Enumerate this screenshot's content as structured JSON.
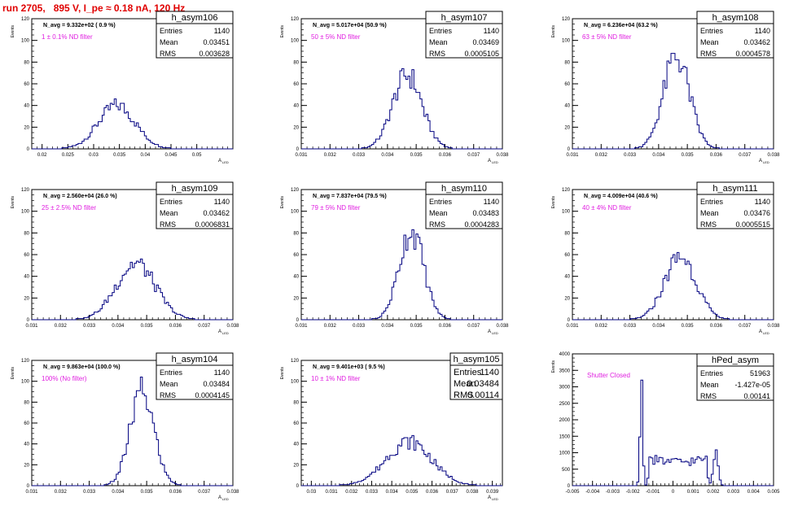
{
  "canvas_title": "run 2705,   895 V, I_pe ≈ 0.18 nA, 120 Hz",
  "colors": {
    "title": "#e00000",
    "annotation": "#e020e0",
    "hist_line": "#000080",
    "axis": "#000000",
    "frame": "#000000"
  },
  "stat_labels": {
    "entries": "Entries",
    "mean": "Mean",
    "rms": "RMS"
  },
  "y_axis_label": "Events",
  "chart_data": [
    {
      "type": "histogram",
      "name": "h_asym106",
      "navg": "N_avg = 9.332e+02 ( 0.9 %)",
      "annotation": "1 ± 0.1% ND filter",
      "stats": {
        "entries": "1140",
        "mean": "0.03451",
        "rms": "0.003628"
      },
      "x_range": [
        0.018,
        0.057
      ],
      "ylim": [
        0,
        120
      ],
      "x_ticks": [
        "0.02",
        "0.025",
        "0.03",
        "0.035",
        "0.04",
        "0.045",
        "0.05"
      ],
      "x_tick_values": [
        0.02,
        0.025,
        0.03,
        0.035,
        0.04,
        0.045,
        0.05
      ],
      "y_ticks": [
        "0",
        "20",
        "40",
        "60",
        "80",
        "100",
        "120"
      ],
      "xlabel": "A",
      "xlabel_sub": "LED",
      "shape": [
        {
          "mean": 0.03451,
          "sigma": 0.0036,
          "peak": 40
        }
      ]
    },
    {
      "type": "histogram",
      "name": "h_asym107",
      "navg": "N_avg = 5.017e+04 (50.9 %)",
      "annotation": "50 ± 5% ND filter",
      "stats": {
        "entries": "1140",
        "mean": "0.03469",
        "rms": "0.0005105"
      },
      "x_range": [
        0.031,
        0.038
      ],
      "ylim": [
        0,
        120
      ],
      "x_ticks": [
        "0.031",
        "0.032",
        "0.033",
        "0.034",
        "0.035",
        "0.036",
        "0.037",
        "0.038"
      ],
      "x_tick_values": [
        0.031,
        0.032,
        0.033,
        0.034,
        0.035,
        0.036,
        0.037,
        0.038
      ],
      "y_ticks": [
        "0",
        "20",
        "40",
        "60",
        "80",
        "100",
        "120"
      ],
      "xlabel": "A",
      "xlabel_sub": "LED",
      "shape": [
        {
          "mean": 0.03469,
          "sigma": 0.00051,
          "peak": 68
        }
      ]
    },
    {
      "type": "histogram",
      "name": "h_asym108",
      "navg": "N_avg = 6.236e+04 (63.2 %)",
      "annotation": "63 ± 5% ND filter",
      "stats": {
        "entries": "1140",
        "mean": "0.03462",
        "rms": "0.0004578"
      },
      "x_range": [
        0.031,
        0.038
      ],
      "ylim": [
        0,
        120
      ],
      "x_ticks": [
        "0.031",
        "0.032",
        "0.033",
        "0.034",
        "0.035",
        "0.036",
        "0.037",
        "0.038"
      ],
      "x_tick_values": [
        0.031,
        0.032,
        0.033,
        0.034,
        0.035,
        0.036,
        0.037,
        0.038
      ],
      "y_ticks": [
        "0",
        "20",
        "40",
        "60",
        "80",
        "100",
        "120"
      ],
      "xlabel": "A",
      "xlabel_sub": "LED",
      "shape": [
        {
          "mean": 0.03462,
          "sigma": 0.000458,
          "peak": 85
        }
      ]
    },
    {
      "type": "histogram",
      "name": "h_asym109",
      "navg": "N_avg = 2.560e+04 (26.0 %)",
      "annotation": "25 ± 2.5% ND filter",
      "stats": {
        "entries": "1140",
        "mean": "0.03462",
        "rms": "0.0006831"
      },
      "x_range": [
        0.031,
        0.038
      ],
      "ylim": [
        0,
        120
      ],
      "x_ticks": [
        "0.031",
        "0.032",
        "0.033",
        "0.034",
        "0.035",
        "0.036",
        "0.037",
        "0.038"
      ],
      "x_tick_values": [
        0.031,
        0.032,
        0.033,
        0.034,
        0.035,
        0.036,
        0.037,
        0.038
      ],
      "y_ticks": [
        "0",
        "20",
        "40",
        "60",
        "80",
        "100",
        "120"
      ],
      "xlabel": "A",
      "xlabel_sub": "LED",
      "shape": [
        {
          "mean": 0.03462,
          "sigma": 0.00068,
          "peak": 52
        }
      ]
    },
    {
      "type": "histogram",
      "name": "h_asym110",
      "navg": "N_avg = 7.837e+04 (79.5 %)",
      "annotation": "79 ± 5% ND filter",
      "stats": {
        "entries": "1140",
        "mean": "0.03483",
        "rms": "0.0004283"
      },
      "x_range": [
        0.031,
        0.038
      ],
      "ylim": [
        0,
        120
      ],
      "x_ticks": [
        "0.031",
        "0.032",
        "0.033",
        "0.034",
        "0.035",
        "0.036",
        "0.037",
        "0.038"
      ],
      "x_tick_values": [
        0.031,
        0.032,
        0.033,
        0.034,
        0.035,
        0.036,
        0.037,
        0.038
      ],
      "y_ticks": [
        "0",
        "20",
        "40",
        "60",
        "80",
        "100",
        "120"
      ],
      "xlabel": "A",
      "xlabel_sub": "LED",
      "shape": [
        {
          "mean": 0.03483,
          "sigma": 0.000428,
          "peak": 82
        }
      ]
    },
    {
      "type": "histogram",
      "name": "h_asym111",
      "navg": "N_avg = 4.009e+04 (40.6 %)",
      "annotation": "40 ± 4% ND filter",
      "stats": {
        "entries": "1140",
        "mean": "0.03476",
        "rms": "0.0005515"
      },
      "x_range": [
        0.031,
        0.038
      ],
      "ylim": [
        0,
        120
      ],
      "x_ticks": [
        "0.031",
        "0.032",
        "0.033",
        "0.034",
        "0.035",
        "0.036",
        "0.037",
        "0.038"
      ],
      "x_tick_values": [
        0.031,
        0.032,
        0.033,
        0.034,
        0.035,
        0.036,
        0.037,
        0.038
      ],
      "y_ticks": [
        "0",
        "20",
        "40",
        "60",
        "80",
        "100",
        "120"
      ],
      "xlabel": "A",
      "xlabel_sub": "LED",
      "shape": [
        {
          "mean": 0.03476,
          "sigma": 0.00055,
          "peak": 58
        }
      ]
    },
    {
      "type": "histogram",
      "name": "h_asym104",
      "navg": "N_avg = 9.863e+04 (100.0 %)",
      "annotation": "100% (No filter)",
      "stats": {
        "entries": "1140",
        "mean": "0.03484",
        "rms": "0.0004145"
      },
      "x_range": [
        0.031,
        0.038
      ],
      "ylim": [
        0,
        120
      ],
      "x_ticks": [
        "0.031",
        "0.032",
        "0.033",
        "0.034",
        "0.035",
        "0.036",
        "0.037",
        "0.038"
      ],
      "x_tick_values": [
        0.031,
        0.032,
        0.033,
        0.034,
        0.035,
        0.036,
        0.037,
        0.038
      ],
      "y_ticks": [
        "0",
        "20",
        "40",
        "60",
        "80",
        "100",
        "120"
      ],
      "xlabel": "A",
      "xlabel_sub": "LED",
      "shape": [
        {
          "mean": 0.03484,
          "sigma": 0.000415,
          "peak": 90
        }
      ]
    },
    {
      "type": "histogram",
      "name": "h_asym105",
      "navg": "N_avg = 9.401e+03 ( 9.5 %)",
      "annotation": "10 ± 1% ND filter",
      "stats": {
        "entries": "1140",
        "mean": "0.03484",
        "rms": "0.00114"
      },
      "x_range": [
        0.0295,
        0.0395
      ],
      "ylim": [
        0,
        120
      ],
      "x_ticks": [
        "0.03",
        "0.031",
        "0.032",
        "0.033",
        "0.034",
        "0.035",
        "0.036",
        "0.037",
        "0.038",
        "0.039"
      ],
      "x_tick_values": [
        0.03,
        0.031,
        0.032,
        0.033,
        0.034,
        0.035,
        0.036,
        0.037,
        0.038,
        0.039
      ],
      "y_ticks": [
        "0",
        "20",
        "40",
        "60",
        "80",
        "100",
        "120"
      ],
      "xlabel": "A",
      "xlabel_sub": "LED",
      "shape": [
        {
          "mean": 0.03484,
          "sigma": 0.00114,
          "peak": 42
        }
      ]
    },
    {
      "type": "histogram",
      "name": "hPed_asym",
      "navg": "",
      "annotation": "Shutter Closed",
      "stats": {
        "entries": "51963",
        "mean": "-1.427e-05",
        "rms": "0.00141"
      },
      "x_range": [
        -0.005,
        0.005
      ],
      "ylim": [
        0,
        4000
      ],
      "x_ticks": [
        "-0.005",
        "-0.004",
        "-0.003",
        "-0.002",
        "-0.001",
        "0",
        "0.001",
        "0.002",
        "0.003",
        "0.004",
        "0.005"
      ],
      "x_tick_values": [
        -0.005,
        -0.004,
        -0.003,
        -0.002,
        -0.001,
        0,
        0.001,
        0.002,
        0.003,
        0.004,
        0.005
      ],
      "y_ticks": [
        "0",
        "500",
        "1000",
        "1500",
        "2000",
        "2500",
        "3000",
        "3500",
        "4000"
      ],
      "xlabel": "",
      "xlabel_sub": "",
      "shape": [
        {
          "mean": -0.00157,
          "sigma": 7e-05,
          "peak": 3050
        },
        {
          "mean": 0.00213,
          "sigma": 0.00012,
          "peak": 1050
        },
        {
          "plateau": [
            -0.0013,
            0.0018
          ],
          "level": 820
        }
      ]
    }
  ]
}
